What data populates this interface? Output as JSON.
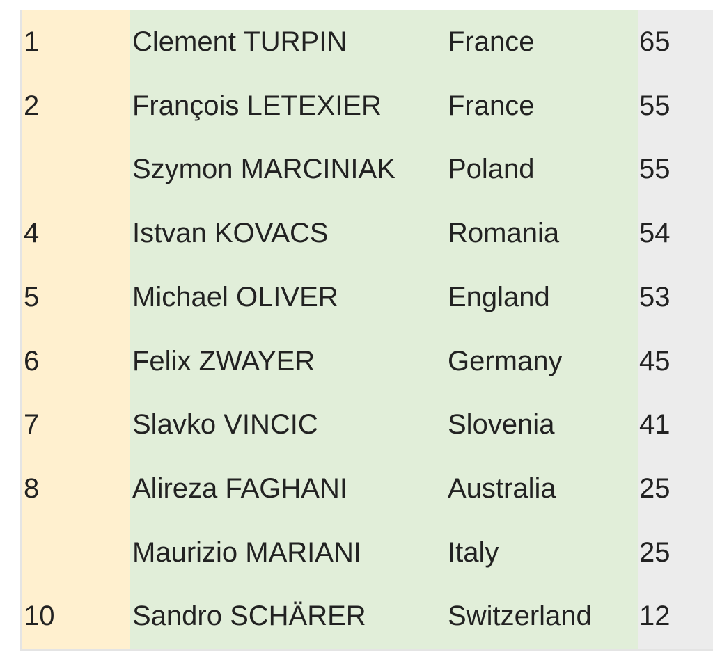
{
  "colors": {
    "rank_column": "#fff0cf",
    "name_country_columns": "#e1eed9",
    "points_column": "#ececec"
  },
  "rows": [
    {
      "rank": "1",
      "name": "Clement TURPIN",
      "country": "France",
      "points": "65"
    },
    {
      "rank": "2",
      "name": "François LETEXIER",
      "country": "France",
      "points": "55"
    },
    {
      "rank": "",
      "name": "Szymon MARCINIAK",
      "country": "Poland",
      "points": "55"
    },
    {
      "rank": "4",
      "name": "Istvan KOVACS",
      "country": "Romania",
      "points": "54"
    },
    {
      "rank": "5",
      "name": "Michael OLIVER",
      "country": "England",
      "points": "53"
    },
    {
      "rank": "6",
      "name": "Felix ZWAYER",
      "country": "Germany",
      "points": "45"
    },
    {
      "rank": "7",
      "name": "Slavko VINCIC",
      "country": "Slovenia",
      "points": "41"
    },
    {
      "rank": "8",
      "name": "Alireza FAGHANI",
      "country": "Australia",
      "points": "25"
    },
    {
      "rank": "",
      "name": "Maurizio MARIANI",
      "country": "Italy",
      "points": "25"
    },
    {
      "rank": "10",
      "name": "Sandro SCHÄRER",
      "country": "Switzerland",
      "points": "12"
    }
  ]
}
